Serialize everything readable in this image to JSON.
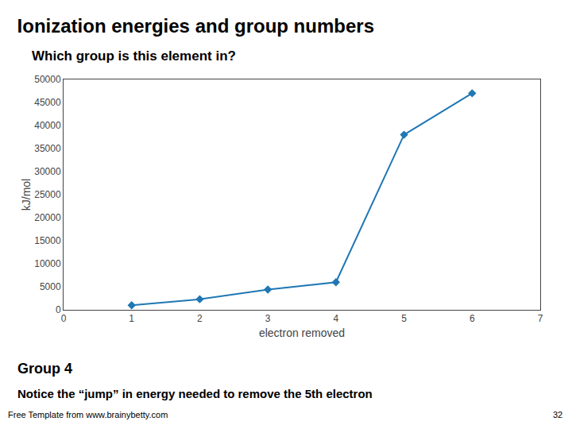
{
  "chart_data": {
    "type": "line",
    "title": "Ionization energies and group numbers",
    "subtitle": "Which group is this element in?",
    "xlabel": "electron removed",
    "ylabel": "kJ/mol",
    "x": [
      1,
      2,
      3,
      4,
      5,
      6
    ],
    "values": [
      1000,
      2300,
      4400,
      6000,
      38000,
      47000
    ],
    "marker": "diamond",
    "xlim": [
      0,
      7
    ],
    "xticks": [
      0,
      1,
      2,
      3,
      4,
      5,
      6,
      7
    ],
    "ylim": [
      0,
      50000
    ],
    "yticks": [
      0,
      5000,
      10000,
      15000,
      20000,
      25000,
      30000,
      35000,
      40000,
      45000,
      50000
    ],
    "grid": false,
    "annotations": [
      "Group 4",
      "Notice the “jump” in energy needed to remove the 5th electron",
      "Free Template from www.brainybetty.com",
      "32"
    ]
  }
}
